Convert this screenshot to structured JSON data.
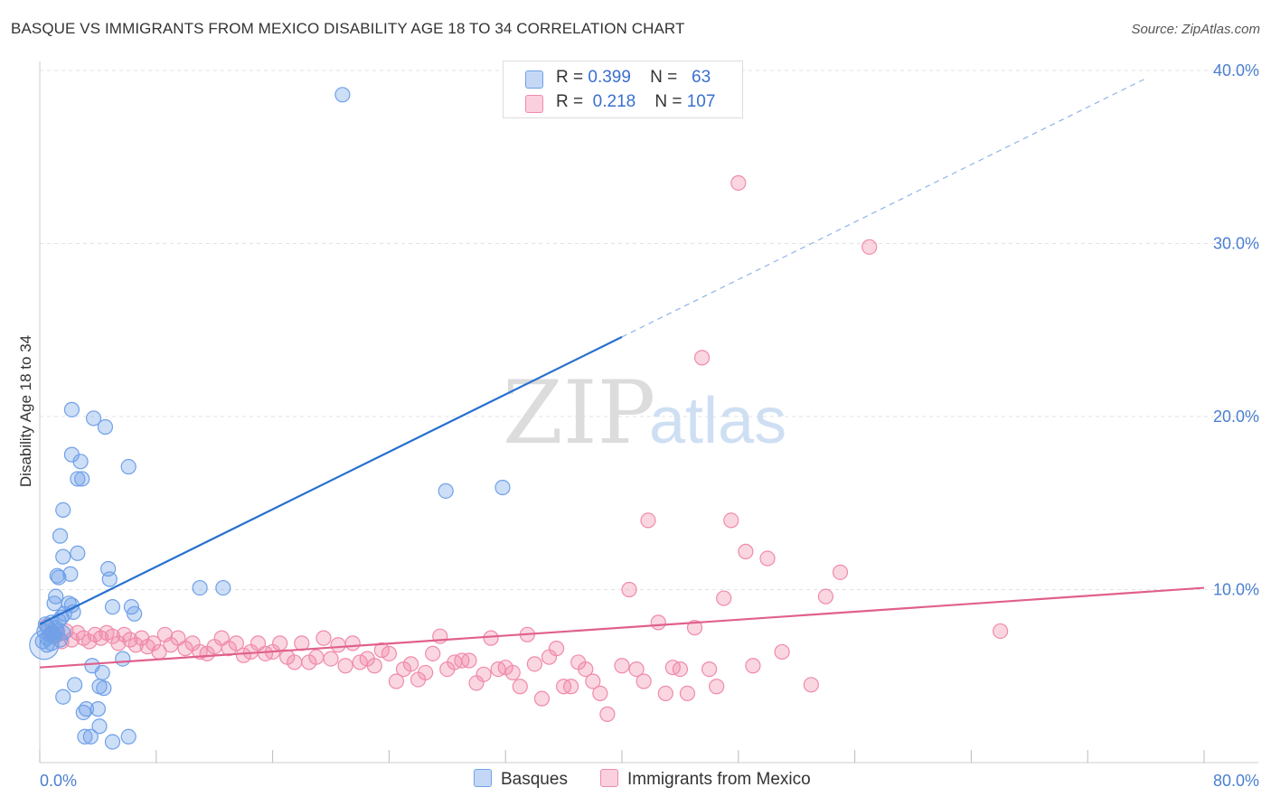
{
  "header": {
    "title": "BASQUE VS IMMIGRANTS FROM MEXICO DISABILITY AGE 18 TO 34 CORRELATION CHART",
    "source": "Source: ZipAtlas.com"
  },
  "legend": {
    "r_label": "R =",
    "n_label": "N =",
    "rows": [
      {
        "r": "0.399",
        "n": "63",
        "color": "#6fa0e8"
      },
      {
        "r": "0.218",
        "n": "107",
        "color": "#f08aaa"
      }
    ]
  },
  "watermark": {
    "zip": "ZIP",
    "atlas": "atlas"
  },
  "chart_data": {
    "type": "scatter",
    "title": "BASQUE VS IMMIGRANTS FROM MEXICO DISABILITY AGE 18 TO 34 CORRELATION CHART",
    "xlabel": "",
    "ylabel": "Disability Age 18 to 34",
    "xlim": [
      0,
      80
    ],
    "ylim": [
      0,
      40
    ],
    "x_tick_labels": [
      "0.0%",
      "80.0%"
    ],
    "y_ticks": [
      10,
      20,
      30,
      40
    ],
    "y_tick_labels": [
      "10.0%",
      "20.0%",
      "30.0%",
      "40.0%"
    ],
    "grid": true,
    "legend_position": "bottom-center",
    "series": [
      {
        "name": "Basques",
        "color": "#6fa0e8",
        "line_color": "#2670d0",
        "trend": {
          "x0": 0,
          "y0": 8.0,
          "x1": 40,
          "y1": 24.6,
          "dashed_to_x": 76
        },
        "points": [
          [
            0.2,
            7.0
          ],
          [
            0.3,
            7.6
          ],
          [
            0.4,
            8.0
          ],
          [
            0.5,
            7.2
          ],
          [
            0.6,
            7.8
          ],
          [
            0.7,
            7.4
          ],
          [
            0.8,
            8.1
          ],
          [
            0.9,
            7.5
          ],
          [
            1.0,
            7.3
          ],
          [
            1.1,
            7.8
          ],
          [
            1.2,
            7.6
          ],
          [
            1.3,
            8.2
          ],
          [
            1.4,
            7.1
          ],
          [
            1.5,
            8.4
          ],
          [
            1.6,
            7.5
          ],
          [
            0.5,
            6.8
          ],
          [
            0.8,
            6.9
          ],
          [
            1.0,
            9.2
          ],
          [
            1.1,
            9.6
          ],
          [
            1.2,
            10.8
          ],
          [
            1.4,
            13.1
          ],
          [
            1.6,
            11.9
          ],
          [
            1.6,
            14.6
          ],
          [
            2.0,
            9.2
          ],
          [
            2.1,
            10.9
          ],
          [
            2.2,
            9.1
          ],
          [
            2.3,
            8.7
          ],
          [
            2.2,
            20.4
          ],
          [
            2.2,
            17.8
          ],
          [
            2.6,
            16.4
          ],
          [
            2.8,
            17.4
          ],
          [
            2.6,
            12.1
          ],
          [
            1.7,
            8.6
          ],
          [
            1.6,
            3.8
          ],
          [
            2.4,
            4.5
          ],
          [
            3.0,
            2.9
          ],
          [
            3.1,
            1.5
          ],
          [
            3.2,
            3.1
          ],
          [
            3.5,
            1.5
          ],
          [
            3.6,
            5.6
          ],
          [
            4.0,
            3.1
          ],
          [
            4.1,
            2.1
          ],
          [
            4.1,
            4.4
          ],
          [
            4.3,
            5.2
          ],
          [
            4.4,
            4.3
          ],
          [
            4.7,
            11.2
          ],
          [
            4.8,
            10.6
          ],
          [
            5.0,
            9.0
          ],
          [
            4.5,
            19.4
          ],
          [
            3.7,
            19.9
          ],
          [
            6.1,
            17.1
          ],
          [
            5.7,
            6.0
          ],
          [
            6.1,
            1.5
          ],
          [
            6.3,
            9.0
          ],
          [
            6.5,
            8.6
          ],
          [
            11.0,
            10.1
          ],
          [
            12.6,
            10.1
          ],
          [
            20.8,
            38.6
          ],
          [
            27.9,
            15.7
          ],
          [
            31.8,
            15.9
          ],
          [
            5.0,
            1.2
          ],
          [
            2.9,
            16.4
          ],
          [
            1.3,
            10.7
          ]
        ]
      },
      {
        "name": "Immigrants from Mexico",
        "color": "#f08aaa",
        "line_color": "#e0608c",
        "trend": {
          "x0": 0,
          "y0": 5.5,
          "x1": 80,
          "y1": 10.1
        },
        "points": [
          [
            0.5,
            7.9
          ],
          [
            0.8,
            7.5
          ],
          [
            1.0,
            7.3
          ],
          [
            1.2,
            7.4
          ],
          [
            1.5,
            7.0
          ],
          [
            1.8,
            7.6
          ],
          [
            2.2,
            7.1
          ],
          [
            2.6,
            7.5
          ],
          [
            3.0,
            7.2
          ],
          [
            3.4,
            7.0
          ],
          [
            3.8,
            7.4
          ],
          [
            4.2,
            7.2
          ],
          [
            4.6,
            7.5
          ],
          [
            5.0,
            7.3
          ],
          [
            5.4,
            6.9
          ],
          [
            5.8,
            7.4
          ],
          [
            6.2,
            7.1
          ],
          [
            6.6,
            6.8
          ],
          [
            7.0,
            7.2
          ],
          [
            7.4,
            6.7
          ],
          [
            7.8,
            6.9
          ],
          [
            8.2,
            6.4
          ],
          [
            8.6,
            7.4
          ],
          [
            9.0,
            6.8
          ],
          [
            9.5,
            7.2
          ],
          [
            10.0,
            6.6
          ],
          [
            10.5,
            6.9
          ],
          [
            11.0,
            6.4
          ],
          [
            11.5,
            6.3
          ],
          [
            12.0,
            6.7
          ],
          [
            12.5,
            7.2
          ],
          [
            13.0,
            6.6
          ],
          [
            13.5,
            6.9
          ],
          [
            14.0,
            6.2
          ],
          [
            14.5,
            6.4
          ],
          [
            15.0,
            6.9
          ],
          [
            15.5,
            6.3
          ],
          [
            16.0,
            6.4
          ],
          [
            16.5,
            6.9
          ],
          [
            17.0,
            6.1
          ],
          [
            17.5,
            5.8
          ],
          [
            18.0,
            6.9
          ],
          [
            18.5,
            5.8
          ],
          [
            19.0,
            6.1
          ],
          [
            19.5,
            7.2
          ],
          [
            20.0,
            6.0
          ],
          [
            20.5,
            6.8
          ],
          [
            21.0,
            5.6
          ],
          [
            21.5,
            6.9
          ],
          [
            22.0,
            5.8
          ],
          [
            22.5,
            6.0
          ],
          [
            23.0,
            5.6
          ],
          [
            23.5,
            6.5
          ],
          [
            24.0,
            6.3
          ],
          [
            24.5,
            4.7
          ],
          [
            25.0,
            5.4
          ],
          [
            25.5,
            5.7
          ],
          [
            26.0,
            4.8
          ],
          [
            26.5,
            5.2
          ],
          [
            27.0,
            6.3
          ],
          [
            27.5,
            7.3
          ],
          [
            28.0,
            5.4
          ],
          [
            28.5,
            5.8
          ],
          [
            29.0,
            5.9
          ],
          [
            29.5,
            5.9
          ],
          [
            30.0,
            4.6
          ],
          [
            30.5,
            5.1
          ],
          [
            31.0,
            7.2
          ],
          [
            31.5,
            5.4
          ],
          [
            32.0,
            5.5
          ],
          [
            32.5,
            5.2
          ],
          [
            33.0,
            4.4
          ],
          [
            33.5,
            7.4
          ],
          [
            34.0,
            5.7
          ],
          [
            34.5,
            3.7
          ],
          [
            35.0,
            6.1
          ],
          [
            35.5,
            6.6
          ],
          [
            36.0,
            4.4
          ],
          [
            36.5,
            4.4
          ],
          [
            37.0,
            5.8
          ],
          [
            37.5,
            5.4
          ],
          [
            38.0,
            4.7
          ],
          [
            38.5,
            4.0
          ],
          [
            39.0,
            2.8
          ],
          [
            40.0,
            5.6
          ],
          [
            40.5,
            10.0
          ],
          [
            41.0,
            5.4
          ],
          [
            41.5,
            4.7
          ],
          [
            41.8,
            14.0
          ],
          [
            42.5,
            8.1
          ],
          [
            43.0,
            4.0
          ],
          [
            43.5,
            5.5
          ],
          [
            44.0,
            5.4
          ],
          [
            44.5,
            4.0
          ],
          [
            45.0,
            7.8
          ],
          [
            45.5,
            23.4
          ],
          [
            46.0,
            5.4
          ],
          [
            46.5,
            4.4
          ],
          [
            47.0,
            9.5
          ],
          [
            47.5,
            14.0
          ],
          [
            48.0,
            33.5
          ],
          [
            48.5,
            12.2
          ],
          [
            49.0,
            5.6
          ],
          [
            50.0,
            11.8
          ],
          [
            51.0,
            6.4
          ],
          [
            53.0,
            4.5
          ],
          [
            54.0,
            9.6
          ],
          [
            55.0,
            11.0
          ],
          [
            57.0,
            29.8
          ],
          [
            66.0,
            7.6
          ]
        ]
      }
    ]
  },
  "bottom_legend": {
    "items": [
      "Basques",
      "Immigrants from Mexico"
    ]
  }
}
